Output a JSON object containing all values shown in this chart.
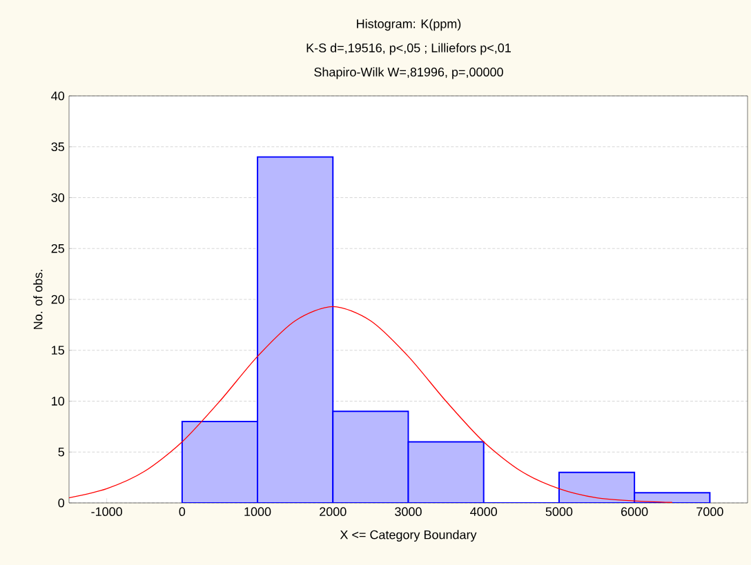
{
  "chart_data": {
    "type": "histogram",
    "title": "Histogram: K(ppm)",
    "subtitle": "K-S d=,19516, p<,05 ; Lilliefors p<,01",
    "annotations": [
      "Shapiro-Wilk W=,81996, p=,00000"
    ],
    "xlabel": "X <= Category Boundary",
    "ylabel": "No. of obs.",
    "bins": [
      0,
      1000,
      2000,
      3000,
      4000,
      5000,
      6000,
      7000
    ],
    "values": [
      8,
      34,
      9,
      6,
      0,
      3,
      1
    ],
    "color": "#0000ff",
    "series": [
      {
        "type": "line",
        "color": "#ff0000",
        "x": [
          -1500,
          -1000,
          -500,
          0,
          500,
          1000,
          1500,
          2000,
          2500,
          3000,
          3500,
          4000,
          4500,
          5000,
          5500,
          6000,
          6500
        ],
        "values": [
          0.5,
          1.4,
          3.1,
          6.0,
          10.0,
          14.4,
          17.9,
          19.3,
          17.9,
          14.4,
          10.0,
          6.0,
          3.1,
          1.4,
          0.5,
          0.2,
          0.05
        ]
      }
    ],
    "xlim": [
      -1500,
      7500
    ],
    "xticks": [
      -1000,
      0,
      1000,
      2000,
      3000,
      4000,
      5000,
      6000,
      7000
    ],
    "ylim": [
      0,
      40
    ],
    "yticks": [
      0,
      5,
      10,
      15,
      20,
      25,
      30,
      35,
      40
    ],
    "grid": "y"
  }
}
